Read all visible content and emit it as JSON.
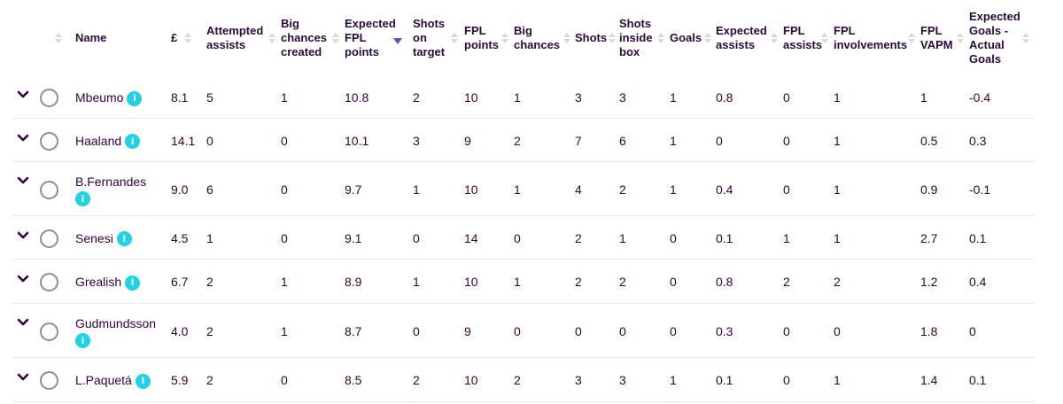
{
  "columns": [
    {
      "key": "name",
      "label": "Name"
    },
    {
      "key": "price",
      "label": "£"
    },
    {
      "key": "attempted_assists",
      "label": "Attempted\nassists"
    },
    {
      "key": "big_chances_created",
      "label": "Big\nchances\ncreated"
    },
    {
      "key": "expected_fpl_points",
      "label": "Expected\nFPL\npoints"
    },
    {
      "key": "shots_on_target",
      "label": "Shots\non\ntarget"
    },
    {
      "key": "fpl_points",
      "label": "FPL\npoints"
    },
    {
      "key": "big_chances",
      "label": "Big\nchances"
    },
    {
      "key": "shots",
      "label": "Shots"
    },
    {
      "key": "shots_inside_box",
      "label": "Shots\ninside\nbox"
    },
    {
      "key": "goals",
      "label": "Goals"
    },
    {
      "key": "expected_assists",
      "label": "Expected\nassists"
    },
    {
      "key": "fpl_assists",
      "label": "FPL\nassists"
    },
    {
      "key": "fpl_involvements",
      "label": "FPL\ninvolvements"
    },
    {
      "key": "fpl_vapm",
      "label": "FPL\nVAPM"
    },
    {
      "key": "xg_minus_goals",
      "label": "Expected\nGoals -\nActual\nGoals"
    }
  ],
  "sorted_by": "expected_fpl_points",
  "sort_direction": "descending",
  "icons": {
    "expand": "chevron-down-icon",
    "select": "radio-icon",
    "info": "info-icon",
    "info_glyph": "i"
  },
  "colors": {
    "text": "#37003c",
    "info_badge": "#1fd3e6",
    "active_sort": "#5b52c4"
  },
  "rows": [
    {
      "name": "Mbeumo",
      "price": "8.1",
      "attempted_assists": "5",
      "big_chances_created": "1",
      "expected_fpl_points": "10.8",
      "shots_on_target": "2",
      "fpl_points": "10",
      "big_chances": "1",
      "shots": "3",
      "shots_inside_box": "3",
      "goals": "1",
      "expected_assists": "0.8",
      "fpl_assists": "0",
      "fpl_involvements": "1",
      "fpl_vapm": "1",
      "xg_minus_goals": "-0.4"
    },
    {
      "name": "Haaland",
      "price": "14.1",
      "attempted_assists": "0",
      "big_chances_created": "0",
      "expected_fpl_points": "10.1",
      "shots_on_target": "3",
      "fpl_points": "9",
      "big_chances": "2",
      "shots": "7",
      "shots_inside_box": "6",
      "goals": "1",
      "expected_assists": "0",
      "fpl_assists": "0",
      "fpl_involvements": "1",
      "fpl_vapm": "0.5",
      "xg_minus_goals": "0.3"
    },
    {
      "name": "B.Fernandes",
      "price": "9.0",
      "attempted_assists": "6",
      "big_chances_created": "0",
      "expected_fpl_points": "9.7",
      "shots_on_target": "1",
      "fpl_points": "10",
      "big_chances": "1",
      "shots": "4",
      "shots_inside_box": "2",
      "goals": "1",
      "expected_assists": "0.4",
      "fpl_assists": "0",
      "fpl_involvements": "1",
      "fpl_vapm": "0.9",
      "xg_minus_goals": "-0.1"
    },
    {
      "name": "Senesi",
      "price": "4.5",
      "attempted_assists": "1",
      "big_chances_created": "0",
      "expected_fpl_points": "9.1",
      "shots_on_target": "0",
      "fpl_points": "14",
      "big_chances": "0",
      "shots": "2",
      "shots_inside_box": "1",
      "goals": "0",
      "expected_assists": "0.1",
      "fpl_assists": "1",
      "fpl_involvements": "1",
      "fpl_vapm": "2.7",
      "xg_minus_goals": "0.1"
    },
    {
      "name": "Grealish",
      "price": "6.7",
      "attempted_assists": "2",
      "big_chances_created": "1",
      "expected_fpl_points": "8.9",
      "shots_on_target": "1",
      "fpl_points": "10",
      "big_chances": "1",
      "shots": "2",
      "shots_inside_box": "2",
      "goals": "0",
      "expected_assists": "0.8",
      "fpl_assists": "2",
      "fpl_involvements": "2",
      "fpl_vapm": "1.2",
      "xg_minus_goals": "0.4"
    },
    {
      "name": "Gudmundsson",
      "price": "4.0",
      "attempted_assists": "2",
      "big_chances_created": "1",
      "expected_fpl_points": "8.7",
      "shots_on_target": "0",
      "fpl_points": "9",
      "big_chances": "0",
      "shots": "0",
      "shots_inside_box": "0",
      "goals": "0",
      "expected_assists": "0.3",
      "fpl_assists": "0",
      "fpl_involvements": "0",
      "fpl_vapm": "1.8",
      "xg_minus_goals": "0"
    },
    {
      "name": "L.Paquetá",
      "price": "5.9",
      "attempted_assists": "2",
      "big_chances_created": "0",
      "expected_fpl_points": "8.5",
      "shots_on_target": "2",
      "fpl_points": "10",
      "big_chances": "2",
      "shots": "3",
      "shots_inside_box": "3",
      "goals": "1",
      "expected_assists": "0.1",
      "fpl_assists": "0",
      "fpl_involvements": "1",
      "fpl_vapm": "1.4",
      "xg_minus_goals": "0.1"
    }
  ]
}
